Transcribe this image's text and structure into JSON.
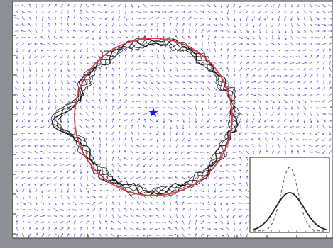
{
  "figure": {
    "background": "#ffffff",
    "frame_color": "#8a9096",
    "vector_color": "#3a3ae0",
    "trace_color": "#000000",
    "circle_color": "#e83a3a",
    "center_marker_color": "#1a1aff",
    "inset": {
      "solid_curve_color": "#222222",
      "dashed_curve_color": "#555555"
    }
  }
}
